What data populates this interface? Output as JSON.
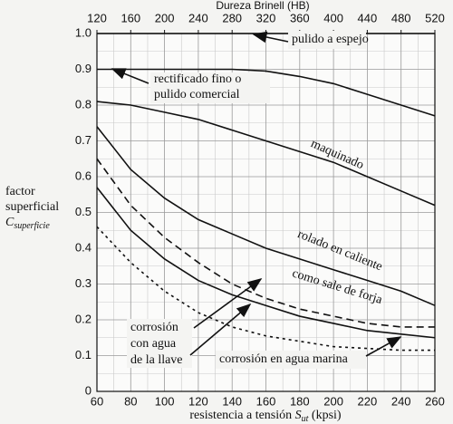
{
  "chart_data": {
    "type": "line",
    "x2_label": "Dureza Brinell (HB)",
    "y_label": [
      "factor",
      "superficial"
    ],
    "y_label_symbol": "C",
    "y_label_subscript": "superficie",
    "x_label": "resistencia a tensión",
    "x_label_symbol": "S",
    "x_label_subscript": "ut",
    "x_label_units": "(kpsi)",
    "x": [
      60,
      80,
      100,
      120,
      140,
      160,
      180,
      200,
      220,
      240,
      260
    ],
    "xlim": [
      60,
      260
    ],
    "xticks": [
      60,
      80,
      100,
      120,
      140,
      160,
      180,
      200,
      220,
      240,
      260
    ],
    "x_minor_ticks": [
      70,
      90,
      110,
      130,
      150,
      170,
      190,
      210,
      230,
      250
    ],
    "x2lim": [
      120,
      520
    ],
    "x2ticks": [
      120,
      160,
      200,
      240,
      280,
      320,
      360,
      400,
      440,
      480,
      520
    ],
    "ylim": [
      0,
      1
    ],
    "yticks": [
      0,
      0.1,
      0.2,
      0.3,
      0.4,
      0.5,
      0.6,
      0.7,
      0.8,
      0.9,
      {
        "value": 1,
        "label": "1.0"
      }
    ],
    "y_minor_ticks": [
      0.05,
      0.15,
      0.25,
      0.35,
      0.45,
      0.55,
      0.65,
      0.75,
      0.85,
      0.95
    ],
    "grid": true,
    "series": [
      {
        "label": [
          "pulido a espejo"
        ],
        "color": "#111",
        "dash": "none",
        "values": [
          1,
          1,
          1,
          1,
          1,
          1,
          1,
          1,
          1,
          1,
          1
        ]
      },
      {
        "label": [
          "rectificado fino o",
          "pulido comercial"
        ],
        "color": "#111",
        "dash": "none",
        "values": [
          0.9,
          0.9,
          0.9,
          0.9,
          0.9,
          0.895,
          0.88,
          0.86,
          0.83,
          0.8,
          0.77
        ]
      },
      {
        "label": [
          "maquinado"
        ],
        "color": "#111",
        "dash": "none",
        "values": [
          0.81,
          0.8,
          0.78,
          0.76,
          0.73,
          0.7,
          0.67,
          0.64,
          0.6,
          0.56,
          0.52
        ]
      },
      {
        "label": [
          "rolado en caliente"
        ],
        "color": "#111",
        "dash": "none",
        "values": [
          0.74,
          0.62,
          0.54,
          0.48,
          0.44,
          0.4,
          0.37,
          0.34,
          0.31,
          0.28,
          0.24
        ]
      },
      {
        "label": [
          "como sale de forja"
        ],
        "color": "#111",
        "dash": "8,5",
        "values": [
          0.65,
          0.52,
          0.43,
          0.36,
          0.3,
          0.26,
          0.23,
          0.21,
          0.19,
          0.18,
          0.18
        ]
      },
      {
        "label": [
          "corrosión",
          "con agua",
          "de la llave"
        ],
        "color": "#111",
        "dash": "none",
        "values": [
          0.57,
          0.45,
          0.37,
          0.31,
          0.27,
          0.24,
          0.21,
          0.19,
          0.17,
          0.16,
          0.15
        ]
      },
      {
        "label": [
          "corrosión en agua marina"
        ],
        "color": "#111",
        "dash": "3,4",
        "values": [
          0.46,
          0.36,
          0.28,
          0.22,
          0.18,
          0.155,
          0.14,
          0.125,
          0.12,
          0.115,
          0.115
        ]
      }
    ]
  }
}
